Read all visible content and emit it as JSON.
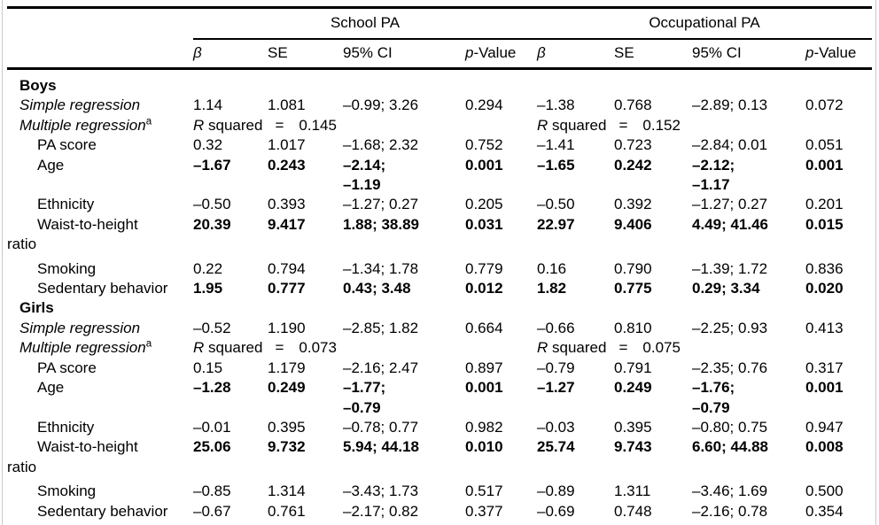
{
  "figure": {
    "background": "#ffffff",
    "rule_color": "#000000",
    "frame_color": "#c9c9c9"
  },
  "table": {
    "groups": [
      {
        "label": "School PA"
      },
      {
        "label": "Occupational PA"
      }
    ],
    "columns": [
      {
        "italic": "β",
        "text": ""
      },
      {
        "italic": "",
        "text": "SE"
      },
      {
        "italic": "",
        "text": "95% CI"
      },
      {
        "italic": "p",
        "text": "-Value"
      },
      {
        "italic": "β",
        "text": ""
      },
      {
        "italic": "",
        "text": "SE"
      },
      {
        "italic": "",
        "text": "95% CI"
      },
      {
        "italic": "p",
        "text": "-Value"
      }
    ],
    "r_squared_r": "R",
    "r_squared_label": "squared",
    "equals": "=",
    "rows": [
      {
        "type": "section",
        "label": "Boys"
      },
      {
        "type": "data",
        "label": "Simple regression",
        "label_style": "italic",
        "cells": [
          "1.14",
          "1.081",
          "–0.99; 3.26",
          "0.294",
          "–1.38",
          "0.768",
          "–2.89; 0.13",
          "0.072"
        ]
      },
      {
        "type": "rsq",
        "label": "Multiple regression",
        "sup": "a",
        "label_style": "italic",
        "values": [
          "0.145",
          "0.152"
        ]
      },
      {
        "type": "data",
        "label": "PA score",
        "label_style": "indent",
        "cells": [
          "0.32",
          "1.017",
          "–1.68; 2.32",
          "0.752",
          "–1.41",
          "0.723",
          "–2.84; 0.01",
          "0.051"
        ]
      },
      {
        "type": "data",
        "label": "Age",
        "label_style": "indent",
        "bold": true,
        "cells": [
          "–1.67",
          "0.243",
          "–2.14;\n–1.19",
          "0.001",
          "–1.65",
          "0.242",
          "–2.12;\n–1.17",
          "0.001"
        ]
      },
      {
        "type": "data",
        "label": "Ethnicity",
        "label_style": "indent",
        "cells": [
          "–0.50",
          "0.393",
          "–1.27; 0.27",
          "0.205",
          "–0.50",
          "0.392",
          "–1.27; 0.27",
          "0.201"
        ]
      },
      {
        "type": "data",
        "label": "Waist-to-height\nratio",
        "label_style": "indent",
        "bold": true,
        "wrap": true,
        "cells": [
          "20.39",
          "9.417",
          "1.88; 38.89",
          "0.031",
          "22.97",
          "9.406",
          "4.49; 41.46",
          "0.015"
        ]
      },
      {
        "type": "data",
        "label": "Smoking",
        "label_style": "indent",
        "cells": [
          "0.22",
          "0.794",
          "–1.34; 1.78",
          "0.779",
          "0.16",
          "0.790",
          "–1.39; 1.72",
          "0.836"
        ]
      },
      {
        "type": "data",
        "label": "Sedentary behavior",
        "label_style": "indent",
        "bold": true,
        "cells": [
          "1.95",
          "0.777",
          "0.43; 3.48",
          "0.012",
          "1.82",
          "0.775",
          "0.29; 3.34",
          "0.020"
        ]
      },
      {
        "type": "section",
        "label": "Girls"
      },
      {
        "type": "data",
        "label": "Simple regression",
        "label_style": "italic",
        "cells": [
          "–0.52",
          "1.190",
          "–2.85; 1.82",
          "0.664",
          "–0.66",
          "0.810",
          "–2.25; 0.93",
          "0.413"
        ]
      },
      {
        "type": "rsq",
        "label": "Multiple regression",
        "sup": "a",
        "label_style": "italic",
        "values": [
          "0.073",
          "0.075"
        ]
      },
      {
        "type": "data",
        "label": "PA score",
        "label_style": "indent",
        "cells": [
          "0.15",
          "1.179",
          "–2.16; 2.47",
          "0.897",
          "–0.79",
          "0.791",
          "–2.35; 0.76",
          "0.317"
        ]
      },
      {
        "type": "data",
        "label": "Age",
        "label_style": "indent",
        "bold": true,
        "cells": [
          "–1.28",
          "0.249",
          "–1.77;\n–0.79",
          "0.001",
          "–1.27",
          "0.249",
          "–1.76;\n–0.79",
          "0.001"
        ]
      },
      {
        "type": "data",
        "label": "Ethnicity",
        "label_style": "indent",
        "cells": [
          "–0.01",
          "0.395",
          "–0.78; 0.77",
          "0.982",
          "–0.03",
          "0.395",
          "–0.80; 0.75",
          "0.947"
        ]
      },
      {
        "type": "data",
        "label": "Waist-to-height\nratio",
        "label_style": "indent",
        "bold": true,
        "wrap": true,
        "cells": [
          "25.06",
          "9.732",
          "5.94; 44.18",
          "0.010",
          "25.74",
          "9.743",
          "6.60; 44.88",
          "0.008"
        ]
      },
      {
        "type": "data",
        "label": "Smoking",
        "label_style": "indent",
        "cells": [
          "–0.85",
          "1.314",
          "–3.43; 1.73",
          "0.517",
          "–0.89",
          "1.311",
          "–3.46; 1.69",
          "0.500"
        ]
      },
      {
        "type": "data",
        "label": "Sedentary behavior",
        "label_style": "indent",
        "cells": [
          "–0.67",
          "0.761",
          "–2.17; 0.82",
          "0.377",
          "–0.69",
          "0.748",
          "–2.16; 0.78",
          "0.354"
        ]
      }
    ]
  }
}
